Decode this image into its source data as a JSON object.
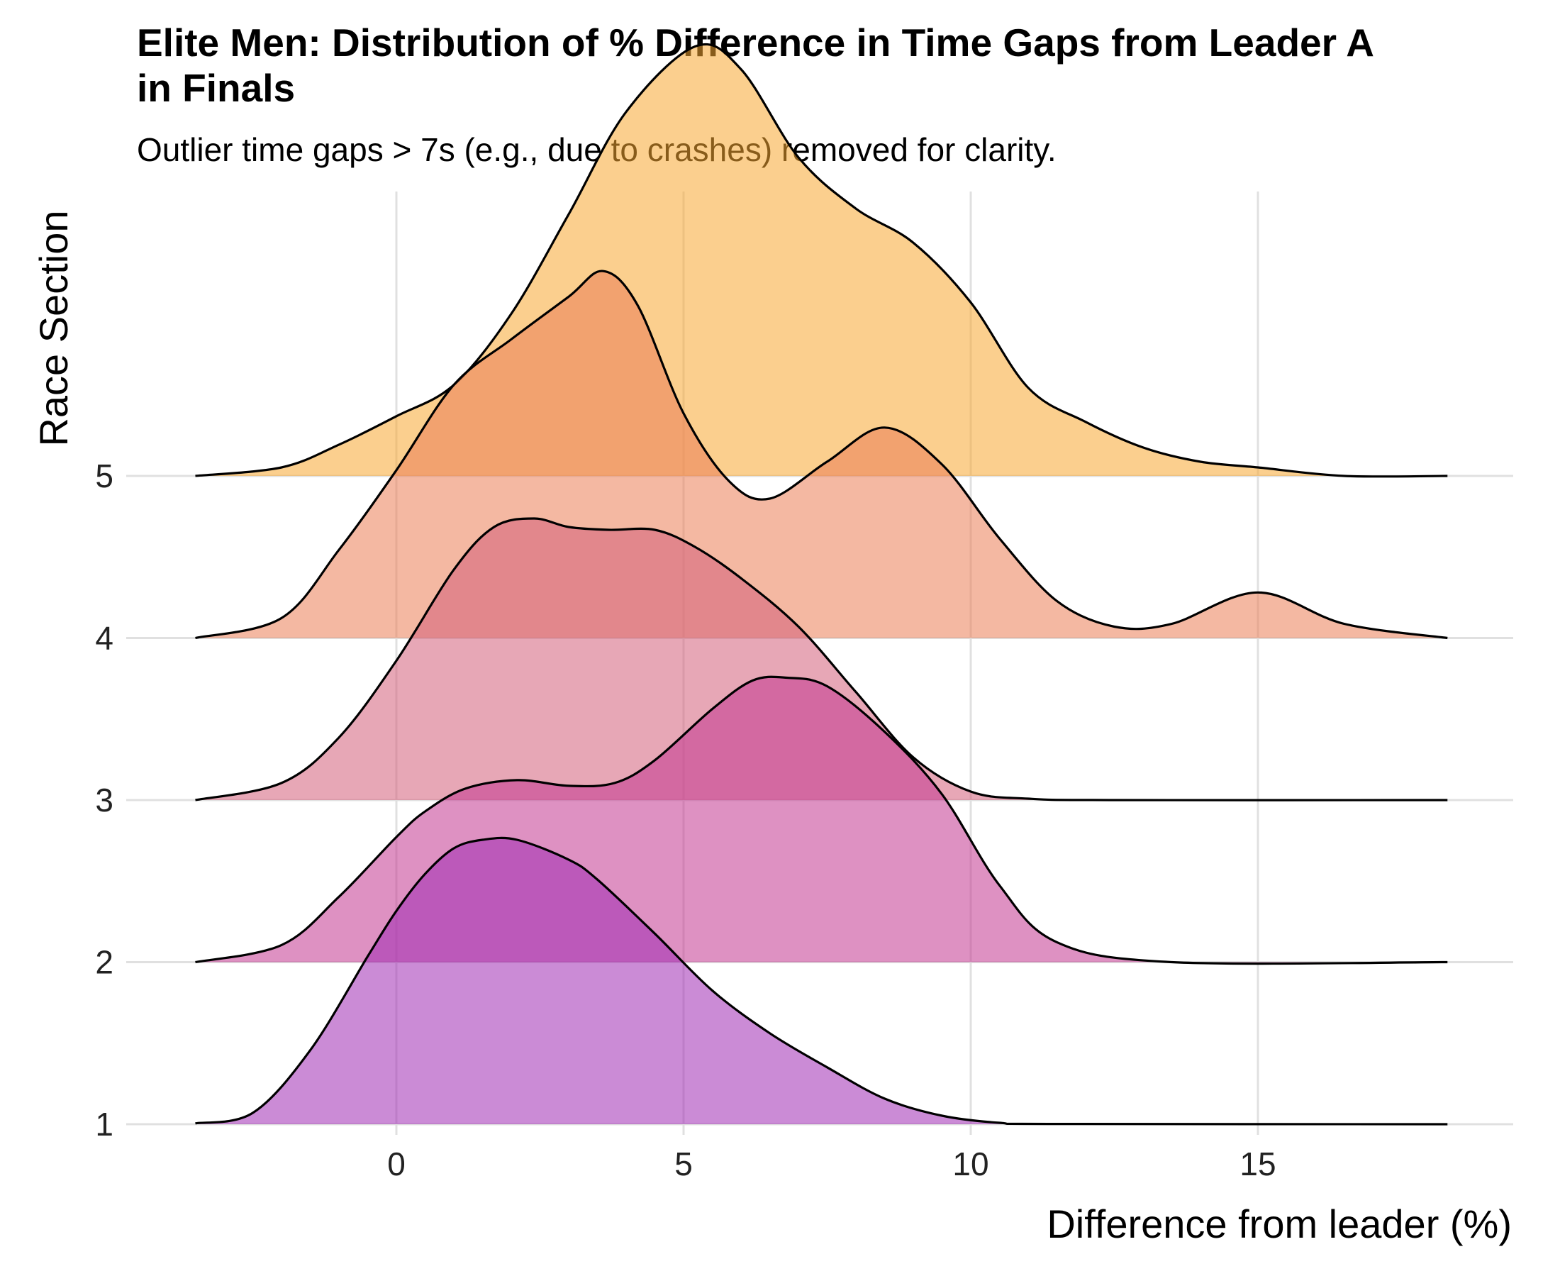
{
  "chart_data": {
    "type": "ridgeline",
    "title_lines": [
      "Elite Men: Distribution of % Difference in Time Gaps from Leader A",
      "in Finals"
    ],
    "subtitle": "Outlier time gaps > 7s (e.g., due to crashes) removed for clarity.",
    "xlabel": "Difference from leader (%)",
    "ylabel": "Race Section",
    "x_ticks": [
      0,
      5,
      10,
      15
    ],
    "xlim": [
      -4.7,
      19.4
    ],
    "grid": true,
    "categories": [
      "1",
      "2",
      "3",
      "4",
      "5"
    ],
    "series": [
      {
        "name": "1",
        "color": "#a12cb4",
        "x": [
          -3.5,
          -2.5,
          -1.5,
          -0.5,
          0,
          0.5,
          1,
          1.5,
          2.1,
          3,
          3.5,
          4.5,
          5.5,
          6.5,
          7.5,
          8.5,
          9.5,
          10.5,
          11.5,
          18.3
        ],
        "density": [
          0.003,
          0.04,
          0.26,
          0.59,
          0.75,
          0.88,
          0.97,
          1.0,
          1.0,
          0.93,
          0.86,
          0.67,
          0.47,
          0.32,
          0.2,
          0.09,
          0.03,
          0.005,
          0.001,
          0.0
        ]
      },
      {
        "name": "2",
        "color": "#c2378f",
        "x": [
          -3.5,
          -2,
          -1,
          0,
          0.5,
          1.2,
          2.1,
          3,
          3.8,
          4.5,
          5.5,
          6.2,
          6.8,
          7.5,
          8.5,
          9.5,
          10.5,
          11.5,
          13.5,
          18.3
        ],
        "density": [
          0.0,
          0.06,
          0.23,
          0.44,
          0.53,
          0.61,
          0.64,
          0.62,
          0.63,
          0.71,
          0.89,
          0.99,
          1.0,
          0.97,
          0.81,
          0.59,
          0.27,
          0.07,
          0.0,
          0.0
        ]
      },
      {
        "name": "3",
        "color": "#d45f7a",
        "x": [
          -3.5,
          -2,
          -1,
          0,
          1,
          1.7,
          2.4,
          3,
          3.7,
          4.5,
          5.2,
          6,
          7,
          8,
          9,
          10,
          11,
          12.5,
          18.3
        ],
        "density": [
          0.0,
          0.06,
          0.22,
          0.49,
          0.81,
          0.96,
          0.99,
          0.96,
          0.95,
          0.95,
          0.89,
          0.78,
          0.61,
          0.38,
          0.15,
          0.03,
          0.005,
          0.0,
          0.0
        ]
      },
      {
        "name": "4",
        "color": "#eb7d56",
        "x": [
          -3.5,
          -2,
          -1,
          0,
          1,
          2,
          3,
          3.6,
          4.2,
          5,
          5.8,
          6.5,
          7.5,
          8.5,
          9.5,
          10.5,
          11.5,
          12.5,
          13.5,
          15,
          16.5,
          18.3
        ],
        "density": [
          0.0,
          0.07,
          0.31,
          0.59,
          0.89,
          1.05,
          1.2,
          1.29,
          1.17,
          0.79,
          0.55,
          0.49,
          0.62,
          0.74,
          0.61,
          0.35,
          0.13,
          0.04,
          0.05,
          0.16,
          0.05,
          0.0
        ]
      },
      {
        "name": "5",
        "color": "#f7a832",
        "x": [
          -3.5,
          -2,
          -1,
          0,
          1,
          2,
          3,
          4,
          5.2,
          6,
          7,
          8,
          9,
          10,
          11,
          12,
          13,
          14,
          15,
          16.5,
          18.3
        ],
        "density": [
          0.0,
          0.03,
          0.11,
          0.21,
          0.32,
          0.57,
          0.92,
          1.28,
          1.51,
          1.43,
          1.12,
          0.94,
          0.82,
          0.61,
          0.31,
          0.19,
          0.1,
          0.05,
          0.03,
          0.0,
          0.0
        ]
      }
    ]
  }
}
